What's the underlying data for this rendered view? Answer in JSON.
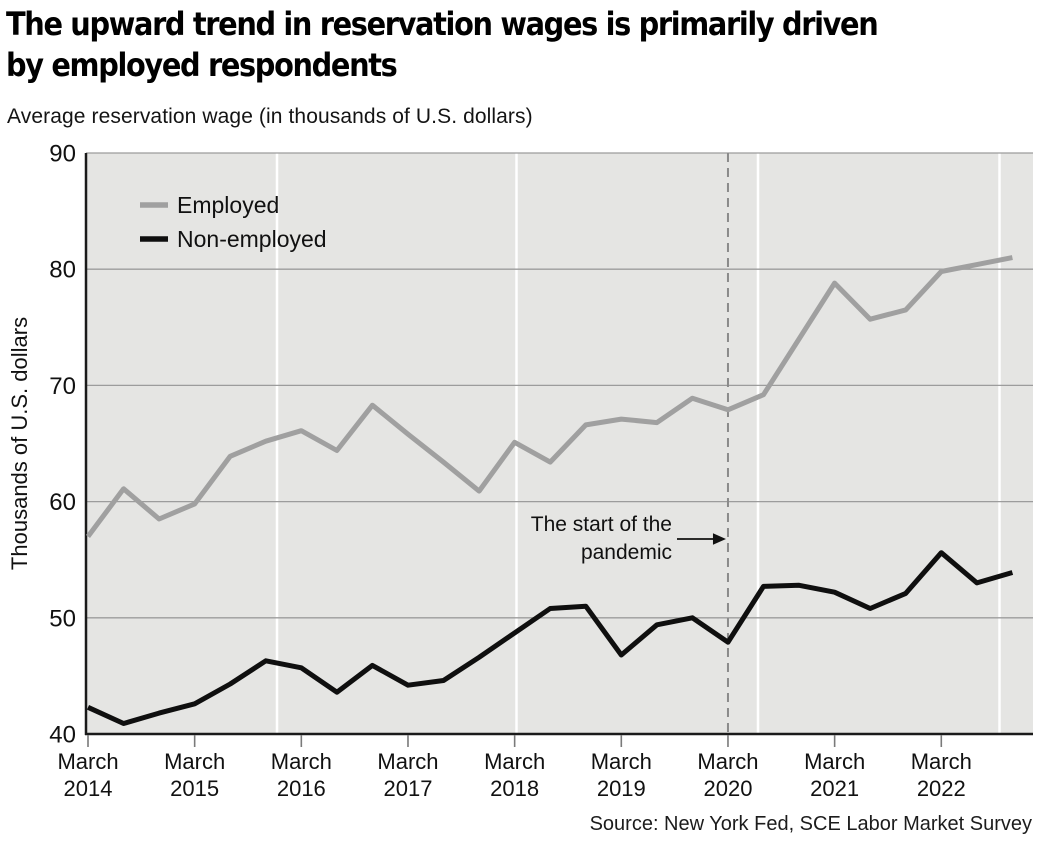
{
  "header": {
    "title_line1": "The upward trend in reservation wages is primarily driven",
    "title_line2": "by employed respondents",
    "subtitle": "Average reservation wage (in thousands of U.S. dollars)"
  },
  "source": "Source: New York Fed, SCE Labor Market Survey",
  "chart_data": {
    "type": "line",
    "title": "The upward trend in reservation wages is primarily driven by employed respondents",
    "subtitle": "Average reservation wage (in thousands of U.S. dollars)",
    "ylabel": "Thousands of U.S. dollars",
    "xlabel": "",
    "ylim": [
      40,
      90
    ],
    "yticks": [
      40,
      50,
      60,
      70,
      80,
      90
    ],
    "grid": "horizontal gray lines at 50-90, white vertical accent lines, light gray plot background",
    "legend_position": "top-left inside plot",
    "x": [
      "March 2014",
      "July 2014",
      "November 2014",
      "March 2015",
      "July 2015",
      "November 2015",
      "March 2016",
      "July 2016",
      "November 2016",
      "March 2017",
      "July 2017",
      "November 2017",
      "March 2018",
      "July 2018",
      "November 2018",
      "March 2019",
      "July 2019",
      "November 2019",
      "March 2020",
      "July 2020",
      "November 2020",
      "March 2021",
      "July 2021",
      "November 2021",
      "March 2022",
      "July 2022",
      "November 2022"
    ],
    "x_tick_labels": [
      {
        "line1": "March",
        "line2": "2014"
      },
      {
        "line1": "March",
        "line2": "2015"
      },
      {
        "line1": "March",
        "line2": "2016"
      },
      {
        "line1": "March",
        "line2": "2017"
      },
      {
        "line1": "March",
        "line2": "2018"
      },
      {
        "line1": "March",
        "line2": "2019"
      },
      {
        "line1": "March",
        "line2": "2020"
      },
      {
        "line1": "March",
        "line2": "2021"
      },
      {
        "line1": "March",
        "line2": "2022"
      }
    ],
    "series": [
      {
        "name": "Employed",
        "color": "#a0a0a0",
        "values": [
          57.0,
          61.1,
          58.5,
          59.8,
          63.9,
          65.2,
          66.1,
          64.4,
          68.3,
          65.8,
          63.4,
          60.9,
          65.1,
          63.4,
          66.6,
          67.1,
          66.8,
          68.9,
          67.9,
          69.2,
          74.0,
          78.8,
          75.7,
          76.5,
          79.8,
          80.4,
          81.0
        ]
      },
      {
        "name": "Non-employed",
        "color": "#0f0f0f",
        "values": [
          42.3,
          40.9,
          41.8,
          42.6,
          44.3,
          46.3,
          45.7,
          43.6,
          45.9,
          44.2,
          44.6,
          46.6,
          48.7,
          50.8,
          51.0,
          46.8,
          49.4,
          50.0,
          47.9,
          52.7,
          52.8,
          52.2,
          50.8,
          52.1,
          55.6,
          53.0,
          53.9
        ]
      }
    ],
    "annotation": {
      "text_line1": "The start of the",
      "text_line2": "pandemic",
      "points_to": "March 2020",
      "x_index": 18
    },
    "colors": {
      "plot_background": "#e5e5e3",
      "h_gridline": "#9c9c9c",
      "v_gridline_white": "#ffffff",
      "dashed_event_line": "#8a8a8a",
      "axis": "#1a1a1a",
      "tick": "#7a7a7a",
      "text": "#111111"
    }
  }
}
